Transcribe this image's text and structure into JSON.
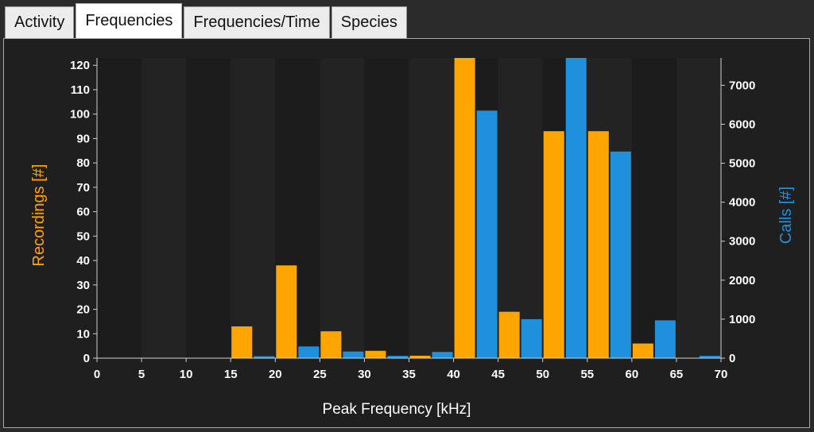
{
  "tabs": [
    {
      "label": "Activity",
      "active": false
    },
    {
      "label": "Frequencies",
      "active": true
    },
    {
      "label": "Frequencies/Time",
      "active": false
    },
    {
      "label": "Species",
      "active": false
    }
  ],
  "chart_data": {
    "type": "bar",
    "xlabel": "Peak Frequency [kHz]",
    "xlim": [
      0,
      70
    ],
    "x_ticks": [
      0,
      5,
      10,
      15,
      20,
      25,
      30,
      35,
      40,
      45,
      50,
      55,
      60,
      65,
      70
    ],
    "bin_width": 5,
    "bin_starts": [
      0,
      5,
      10,
      15,
      20,
      25,
      30,
      35,
      40,
      45,
      50,
      55,
      60,
      65
    ],
    "series": [
      {
        "name": "Recordings [#]",
        "axis": "left",
        "color": "#ffa500",
        "values": [
          0,
          0,
          0,
          13,
          38,
          11,
          3,
          1,
          124,
          19,
          93,
          93,
          6,
          0
        ]
      },
      {
        "name": "Calls [#]",
        "axis": "right",
        "color": "#1e90dc",
        "values": [
          0,
          0,
          0,
          50,
          300,
          170,
          60,
          160,
          6350,
          1000,
          7700,
          5300,
          970,
          60
        ]
      }
    ],
    "y_left": {
      "label": "Recordings [#]",
      "range": [
        0,
        123
      ],
      "ticks": [
        0,
        10,
        20,
        30,
        40,
        50,
        60,
        70,
        80,
        90,
        100,
        110,
        120
      ],
      "color": "#ffa500"
    },
    "y_right": {
      "label": "Calls [#]",
      "range": [
        0,
        7700
      ],
      "ticks": [
        0,
        1000,
        2000,
        3000,
        4000,
        5000,
        6000,
        7000
      ],
      "color": "#1e90dc"
    },
    "background": {
      "dark": "#1c1c1c",
      "light": "#232323"
    }
  }
}
